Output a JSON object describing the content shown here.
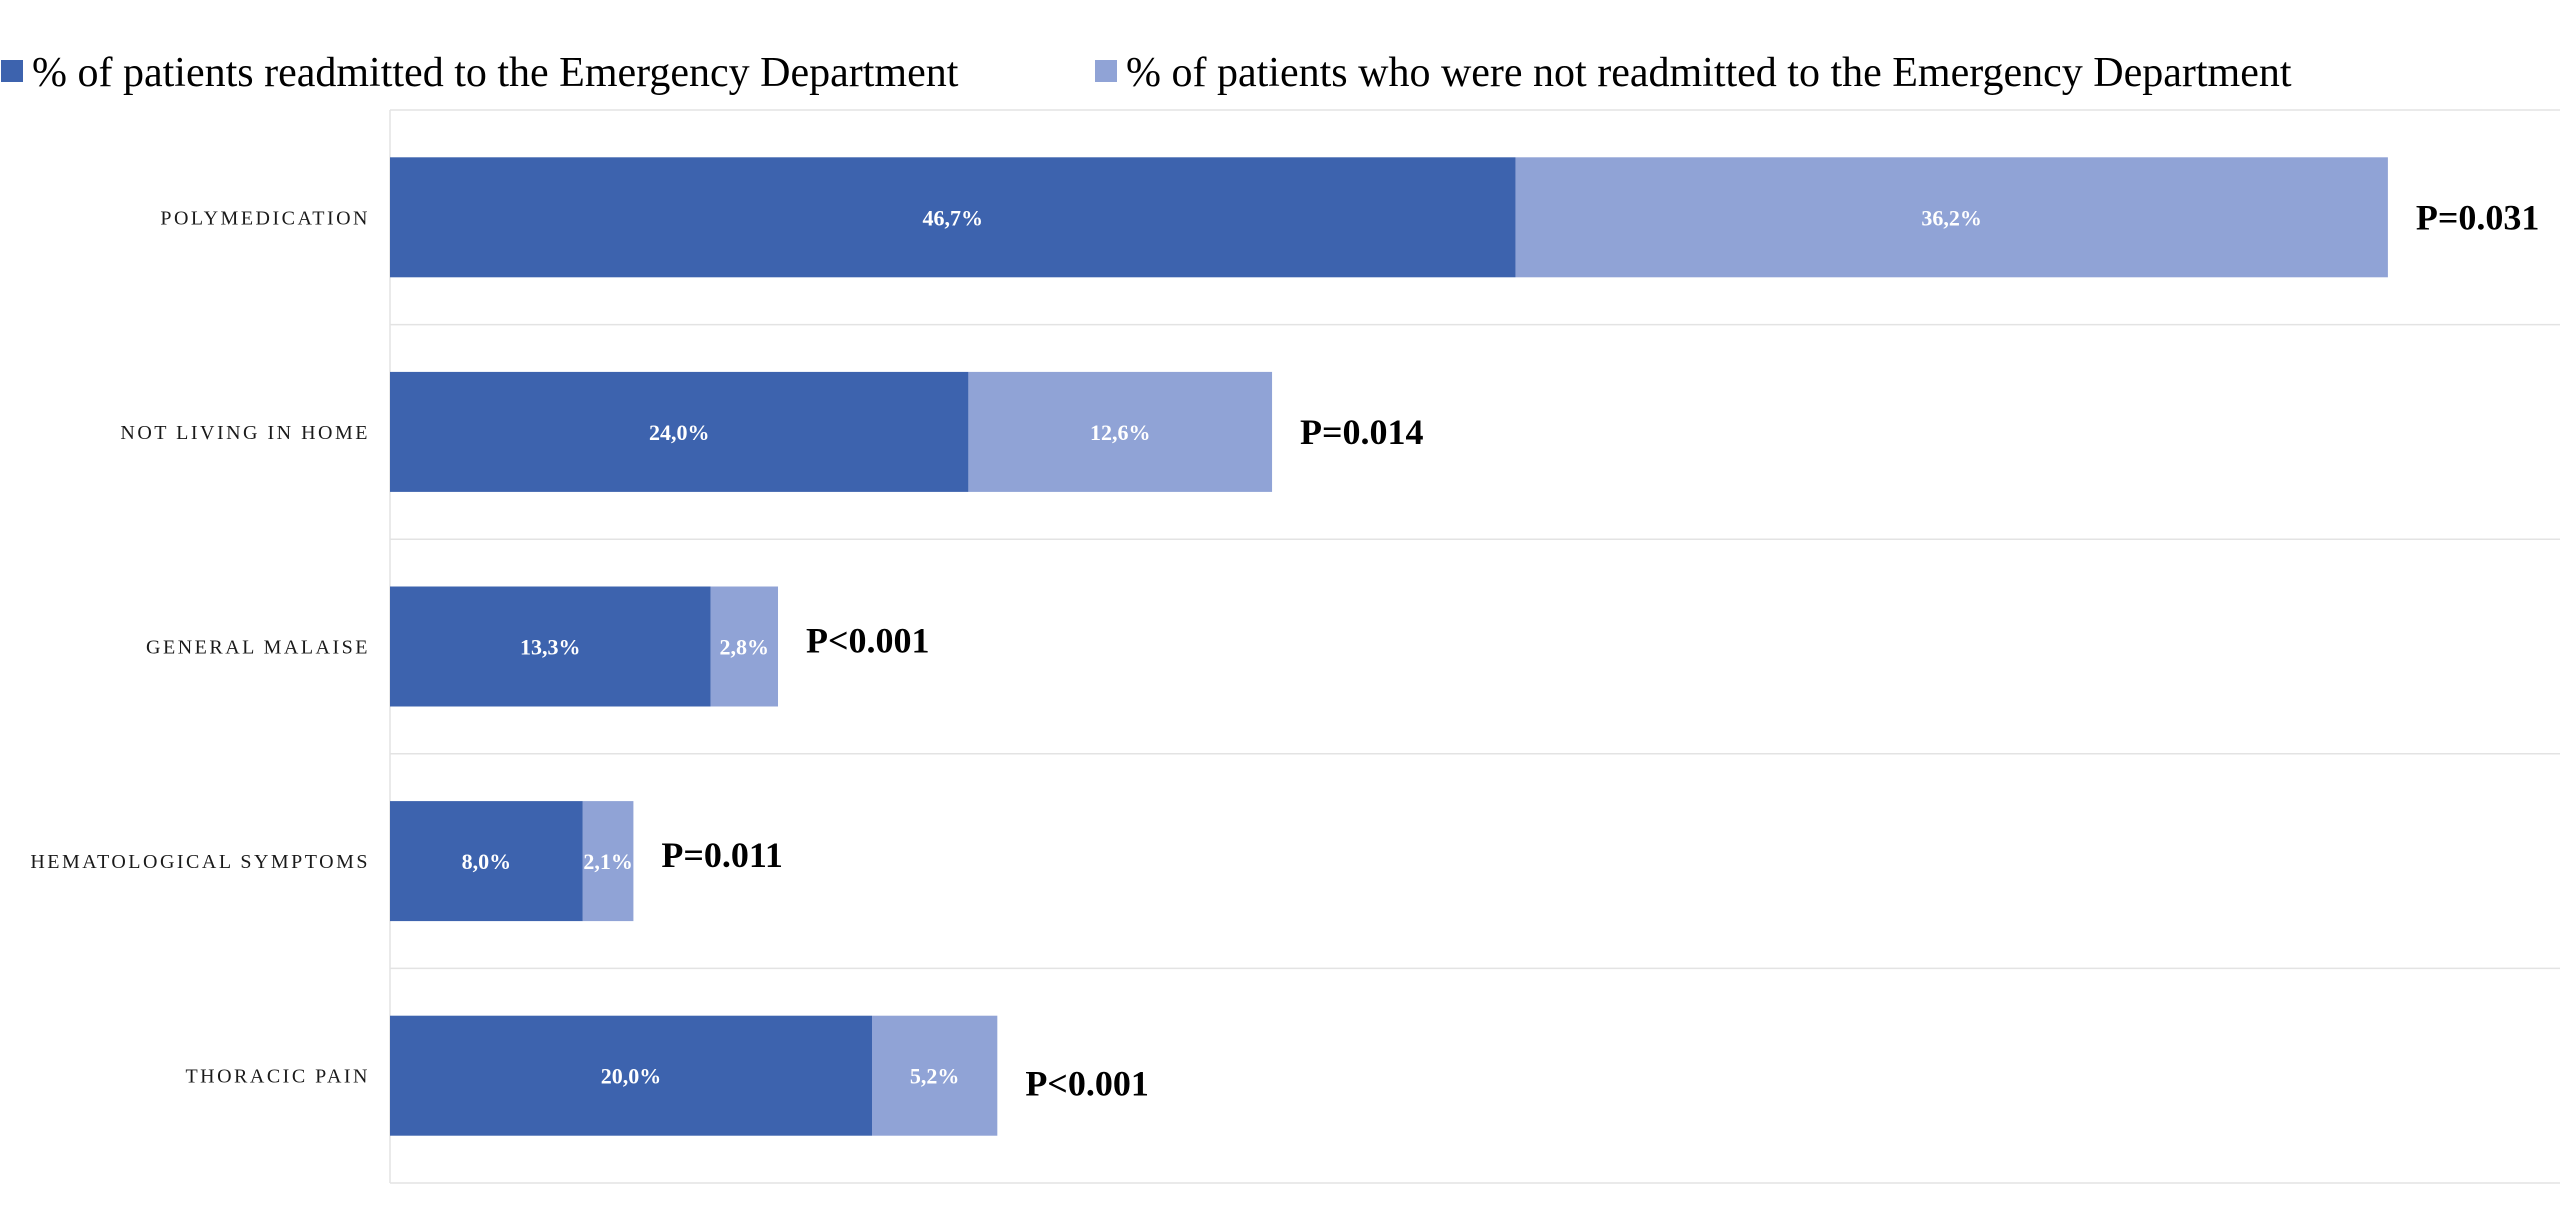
{
  "chart_data": {
    "type": "bar",
    "orientation": "horizontal",
    "stacked": true,
    "categories": [
      "POLYMEDICATION",
      "NOT LIVING IN HOME",
      "GENERAL MALAISE",
      "HEMATOLOGICAL SYMPTOMS",
      "THORACIC PAIN"
    ],
    "series": [
      {
        "name": "% of patients readmitted to the Emergency Department",
        "color": "#3d63ae",
        "values": [
          46.7,
          24.0,
          13.3,
          8.0,
          20.0
        ],
        "labels": [
          "46,7%",
          "24,0%",
          "13,3%",
          "8,0%",
          "20,0%"
        ]
      },
      {
        "name": "% of patients who were not readmitted to the Emergency Department",
        "color": "#90a3d6",
        "values": [
          36.2,
          12.6,
          2.8,
          2.1,
          5.2
        ],
        "labels": [
          "36,2%",
          "12,6%",
          "2,8%",
          "2,1%",
          "5,2%"
        ]
      }
    ],
    "annotations": [
      "P=0.031",
      "P=0.014",
      "P<0.001",
      "P=0.011",
      "P<0.001"
    ],
    "xlim": [
      0,
      90
    ],
    "legend_position": "top",
    "grid": "horizontal separators between categories"
  }
}
